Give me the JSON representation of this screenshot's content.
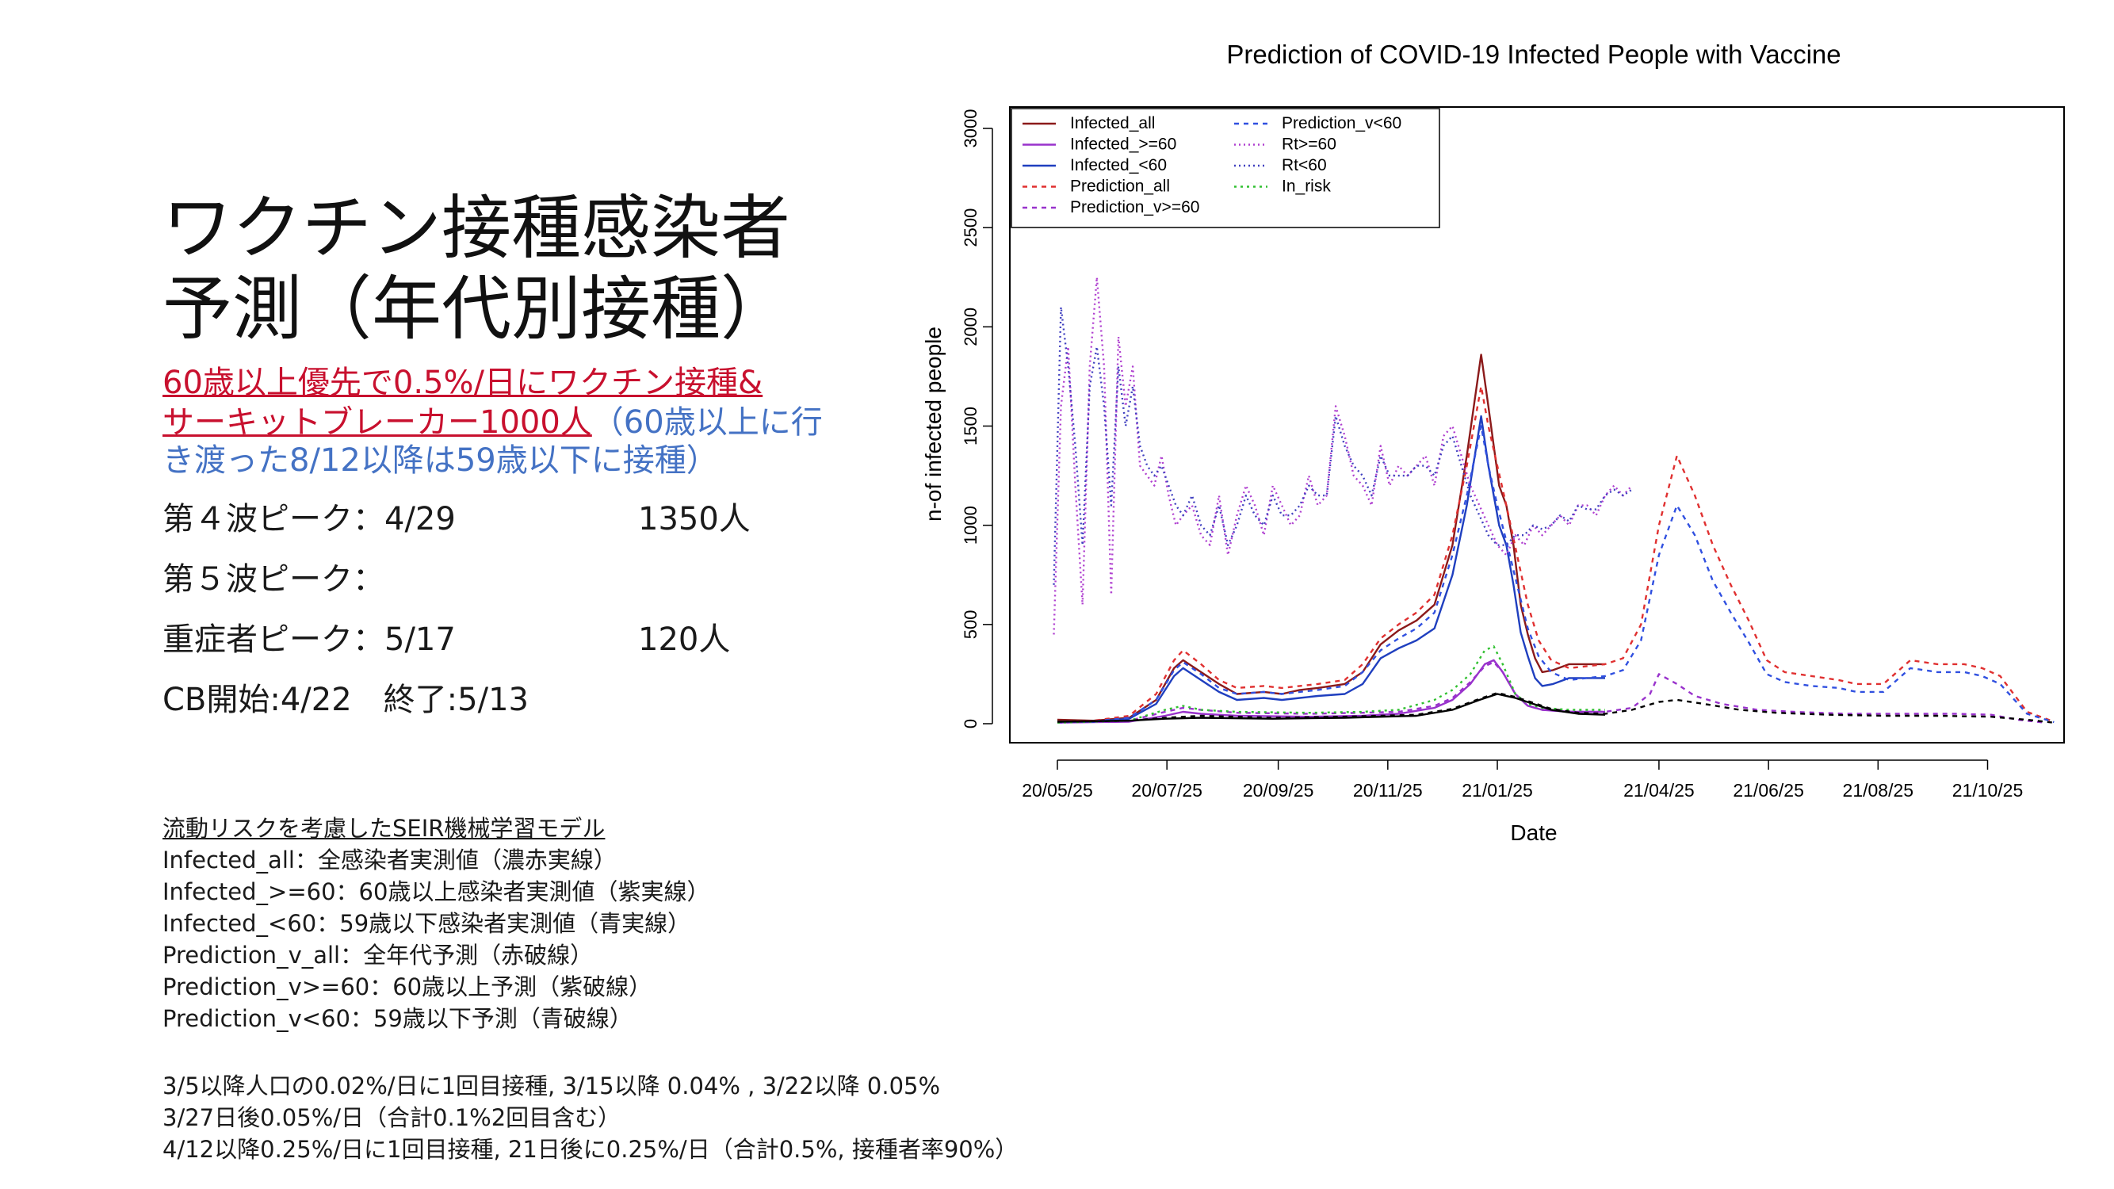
{
  "slide": {
    "title_line1": "ワクチン接種感染者",
    "title_line2": "予測（年代別接種）",
    "subtitle_red_line1": "60歳以上優先で0.5%/日にワクチン接種&",
    "subtitle_red_line2": "サーキットブレーカー1000人",
    "subtitle_blue_line2": "（60歳以上に行",
    "subtitle_blue_line3": "き渡った8/12以降は59歳以下に接種）",
    "stats": [
      {
        "label": "第４波ピーク：4/29",
        "value": "1350人"
      },
      {
        "label": "第５波ピーク：",
        "value": ""
      },
      {
        "label": "重症者ピーク：5/17",
        "value": "120人"
      },
      {
        "label": "CB開始:4/22　終了:5/13",
        "value": ""
      }
    ],
    "notes_heading": "流動リスクを考慮したSEIR機械学習モデル",
    "notes": [
      "Infected_all：全感染者実測値（濃赤実線）",
      "Infected_>=60：60歳以上感染者実測値（紫実線）",
      "Infected_<60：59歳以下感染者実測値（青実線）",
      "Prediction_v_all：全年代予測（赤破線）",
      "Prediction_v>=60：60歳以上予測（紫破線）",
      "Prediction_v<60：59歳以下予測（青破線）"
    ],
    "vaccine_notes": [
      "3/5以降人口の0.02%/日に1回目接種, 3/15以降 0.04% , 3/22以降 0.05%",
      "3/27日後0.05%/日（合計0.1%2回目含む）",
      "4/12以降0.25%/日に1回目接種, 21日後に0.25%/日（合計0.5%, 接種者率90%）"
    ]
  },
  "chart_data": {
    "type": "line",
    "title": "Prediction of COVID-19 Infected People with Vaccine",
    "xlabel": "Date",
    "ylabel": "n-of infected people",
    "ylim": [
      0,
      3000
    ],
    "xlim_days": [
      -15,
      550
    ],
    "x_ticks": [
      "20/05/25",
      "20/07/25",
      "20/09/25",
      "20/11/25",
      "21/01/25",
      "21/04/25",
      "21/06/25",
      "21/08/25",
      "21/10/25"
    ],
    "x_tick_days": [
      0,
      61,
      123,
      184,
      245,
      335,
      396,
      457,
      518
    ],
    "y_ticks": [
      0,
      500,
      1000,
      1500,
      2000,
      2500,
      3000
    ],
    "legend_position": "top-left",
    "x_unit": "days since 20/05/25",
    "series": [
      {
        "name": "Infected_all",
        "color": "#8b1a1a",
        "dash": "solid",
        "x": [
          0,
          20,
          40,
          55,
          65,
          70,
          80,
          90,
          100,
          115,
          125,
          135,
          145,
          160,
          170,
          180,
          190,
          200,
          210,
          220,
          228,
          236,
          240,
          243,
          246,
          250,
          254,
          258,
          262,
          266,
          270,
          276,
          285,
          295,
          305
        ],
        "y": [
          20,
          15,
          30,
          120,
          280,
          320,
          260,
          200,
          150,
          160,
          150,
          170,
          180,
          200,
          260,
          400,
          470,
          520,
          600,
          900,
          1350,
          1860,
          1600,
          1400,
          1200,
          1100,
          900,
          600,
          450,
          330,
          260,
          270,
          300,
          300,
          300
        ]
      },
      {
        "name": "Infected_>=60",
        "color": "#9932cc",
        "dash": "solid",
        "x": [
          0,
          40,
          60,
          70,
          80,
          100,
          140,
          170,
          190,
          210,
          220,
          230,
          238,
          243,
          248,
          255,
          262,
          270,
          285,
          305
        ],
        "y": [
          5,
          10,
          40,
          60,
          50,
          40,
          35,
          40,
          50,
          80,
          120,
          200,
          300,
          320,
          260,
          150,
          90,
          70,
          60,
          60
        ]
      },
      {
        "name": "Infected_<60",
        "color": "#1f3fbf",
        "dash": "solid",
        "x": [
          0,
          20,
          40,
          55,
          65,
          70,
          80,
          90,
          100,
          115,
          125,
          135,
          145,
          160,
          170,
          180,
          190,
          200,
          210,
          220,
          228,
          236,
          240,
          243,
          246,
          250,
          254,
          258,
          262,
          266,
          270,
          276,
          285,
          295,
          305
        ],
        "y": [
          10,
          10,
          25,
          100,
          240,
          280,
          220,
          160,
          120,
          130,
          120,
          130,
          140,
          150,
          200,
          330,
          380,
          420,
          480,
          750,
          1100,
          1550,
          1300,
          1150,
          1000,
          900,
          700,
          460,
          340,
          230,
          190,
          200,
          230,
          230,
          230
        ]
      },
      {
        "name": "Prediction_all",
        "color": "#e03030",
        "dash": "6,6",
        "x": [
          0,
          20,
          40,
          55,
          65,
          70,
          80,
          90,
          100,
          115,
          125,
          135,
          145,
          160,
          170,
          180,
          190,
          200,
          210,
          220,
          228,
          236,
          240,
          245,
          250,
          256,
          262,
          268,
          275,
          285,
          295,
          305,
          315,
          325,
          335,
          345,
          355,
          365,
          375,
          385,
          395,
          405,
          420,
          435,
          445,
          460,
          475,
          490,
          505,
          515,
          525,
          540,
          555
        ],
        "y": [
          10,
          15,
          40,
          150,
          320,
          370,
          300,
          220,
          180,
          190,
          180,
          190,
          200,
          220,
          300,
          430,
          500,
          560,
          650,
          950,
          1300,
          1700,
          1500,
          1300,
          1100,
          850,
          600,
          420,
          320,
          280,
          290,
          300,
          330,
          500,
          1000,
          1350,
          1150,
          900,
          700,
          520,
          320,
          260,
          240,
          220,
          200,
          200,
          320,
          300,
          300,
          280,
          240,
          60,
          10
        ]
      },
      {
        "name": "Prediction_v>=60",
        "color": "#9932cc",
        "dash": "6,6",
        "x": [
          0,
          40,
          60,
          70,
          80,
          100,
          140,
          170,
          190,
          210,
          220,
          230,
          238,
          243,
          248,
          255,
          262,
          270,
          285,
          305,
          320,
          330,
          335,
          345,
          355,
          370,
          390,
          410,
          440,
          470,
          500,
          520,
          535,
          550
        ],
        "y": [
          5,
          15,
          60,
          80,
          70,
          55,
          50,
          55,
          60,
          90,
          130,
          210,
          290,
          310,
          260,
          150,
          90,
          70,
          60,
          60,
          80,
          150,
          250,
          200,
          140,
          100,
          70,
          60,
          50,
          50,
          50,
          45,
          20,
          5
        ]
      },
      {
        "name": "Prediction_v<60",
        "color": "#3050e0",
        "dash": "6,6",
        "x": [
          0,
          20,
          40,
          55,
          65,
          70,
          80,
          90,
          100,
          115,
          125,
          135,
          145,
          160,
          170,
          180,
          190,
          200,
          210,
          220,
          228,
          236,
          240,
          245,
          250,
          256,
          262,
          268,
          275,
          285,
          295,
          305,
          315,
          325,
          335,
          345,
          355,
          365,
          375,
          385,
          395,
          405,
          420,
          435,
          445,
          460,
          475,
          490,
          505,
          515,
          525,
          540,
          555
        ],
        "y": [
          8,
          12,
          30,
          120,
          270,
          310,
          250,
          180,
          150,
          160,
          150,
          160,
          170,
          190,
          260,
          370,
          430,
          480,
          560,
          850,
          1150,
          1500,
          1300,
          1100,
          920,
          700,
          480,
          340,
          260,
          220,
          230,
          240,
          270,
          420,
          850,
          1100,
          950,
          720,
          560,
          410,
          250,
          210,
          190,
          180,
          160,
          160,
          280,
          260,
          260,
          240,
          200,
          50,
          8
        ]
      },
      {
        "name": "Rt>=60",
        "color": "#b040d0",
        "dash": "2,4",
        "x": [
          -2,
          2,
          6,
          10,
          14,
          18,
          22,
          26,
          30,
          34,
          38,
          42,
          46,
          50,
          54,
          58,
          62,
          66,
          70,
          75,
          80,
          85,
          90,
          95,
          100,
          105,
          110,
          115,
          120,
          125,
          130,
          135,
          140,
          145,
          150,
          155,
          160,
          165,
          170,
          175,
          180,
          185,
          190,
          195,
          200,
          205,
          210,
          215,
          220,
          225,
          230,
          235,
          240,
          245,
          250,
          255,
          260,
          265,
          270,
          275,
          280,
          285,
          290,
          295,
          300,
          305,
          310,
          315,
          320
        ],
        "y": [
          450,
          1600,
          1900,
          1200,
          600,
          1800,
          2250,
          1800,
          650,
          1950,
          1600,
          1800,
          1300,
          1250,
          1200,
          1350,
          1150,
          1000,
          1050,
          1100,
          950,
          900,
          1150,
          850,
          1050,
          1200,
          1100,
          950,
          1200,
          1100,
          1000,
          1050,
          1250,
          1100,
          1150,
          1600,
          1450,
          1250,
          1200,
          1100,
          1400,
          1200,
          1300,
          1250,
          1300,
          1350,
          1200,
          1450,
          1500,
          1350,
          1200,
          1100,
          1000,
          900,
          850,
          950,
          900,
          1000,
          950,
          1000,
          1050,
          1000,
          1100,
          1100,
          1050,
          1150,
          1200,
          1150,
          1200
        ]
      },
      {
        "name": "Rt<60",
        "color": "#4040c0",
        "dash": "2,4",
        "x": [
          -2,
          2,
          6,
          10,
          14,
          18,
          22,
          26,
          30,
          34,
          38,
          42,
          46,
          50,
          54,
          58,
          62,
          66,
          70,
          75,
          80,
          85,
          90,
          95,
          100,
          105,
          110,
          115,
          120,
          125,
          130,
          135,
          140,
          145,
          150,
          155,
          160,
          165,
          170,
          175,
          180,
          185,
          190,
          195,
          200,
          205,
          210,
          215,
          220,
          225,
          230,
          235,
          240,
          245,
          250,
          255,
          260,
          265,
          270,
          275,
          280,
          285,
          290,
          295,
          300,
          305,
          310,
          315,
          320
        ],
        "y": [
          700,
          2100,
          1800,
          1400,
          900,
          1700,
          1900,
          1600,
          1100,
          1800,
          1500,
          1700,
          1400,
          1300,
          1250,
          1300,
          1200,
          1100,
          1050,
          1150,
          1000,
          950,
          1100,
          900,
          1000,
          1150,
          1050,
          1000,
          1150,
          1050,
          1050,
          1100,
          1200,
          1150,
          1150,
          1550,
          1400,
          1300,
          1250,
          1150,
          1350,
          1250,
          1250,
          1250,
          1300,
          1300,
          1250,
          1400,
          1450,
          1300,
          1150,
          1050,
          950,
          900,
          900,
          950,
          950,
          1000,
          980,
          1000,
          1050,
          1020,
          1100,
          1080,
          1080,
          1150,
          1180,
          1150,
          1180
        ]
      },
      {
        "name": "In_risk",
        "color": "#30c030",
        "dash": "3,5",
        "x": [
          0,
          40,
          60,
          70,
          80,
          100,
          140,
          170,
          190,
          210,
          220,
          230,
          238,
          243,
          248,
          255,
          262,
          270,
          285,
          305
        ],
        "y": [
          5,
          15,
          70,
          90,
          70,
          60,
          55,
          60,
          70,
          120,
          170,
          250,
          370,
          390,
          300,
          150,
          100,
          80,
          70,
          70
        ]
      },
      {
        "name": "",
        "color": "#000000",
        "dash": "solid",
        "x": [
          0,
          40,
          60,
          80,
          120,
          160,
          200,
          220,
          235,
          245,
          255,
          265,
          275,
          290,
          305
        ],
        "y": [
          10,
          15,
          25,
          30,
          25,
          30,
          40,
          70,
          120,
          150,
          130,
          100,
          70,
          50,
          45
        ]
      },
      {
        "name": "",
        "color": "#000000",
        "dash": "6,6",
        "x": [
          0,
          40,
          60,
          80,
          120,
          160,
          200,
          220,
          235,
          245,
          255,
          265,
          275,
          290,
          305,
          320,
          335,
          345,
          360,
          380,
          400,
          430,
          460,
          490,
          520,
          540,
          555
        ],
        "y": [
          10,
          15,
          30,
          40,
          30,
          35,
          45,
          75,
          125,
          155,
          135,
          105,
          75,
          55,
          50,
          70,
          110,
          120,
          100,
          70,
          55,
          45,
          40,
          40,
          35,
          20,
          5
        ]
      }
    ]
  }
}
